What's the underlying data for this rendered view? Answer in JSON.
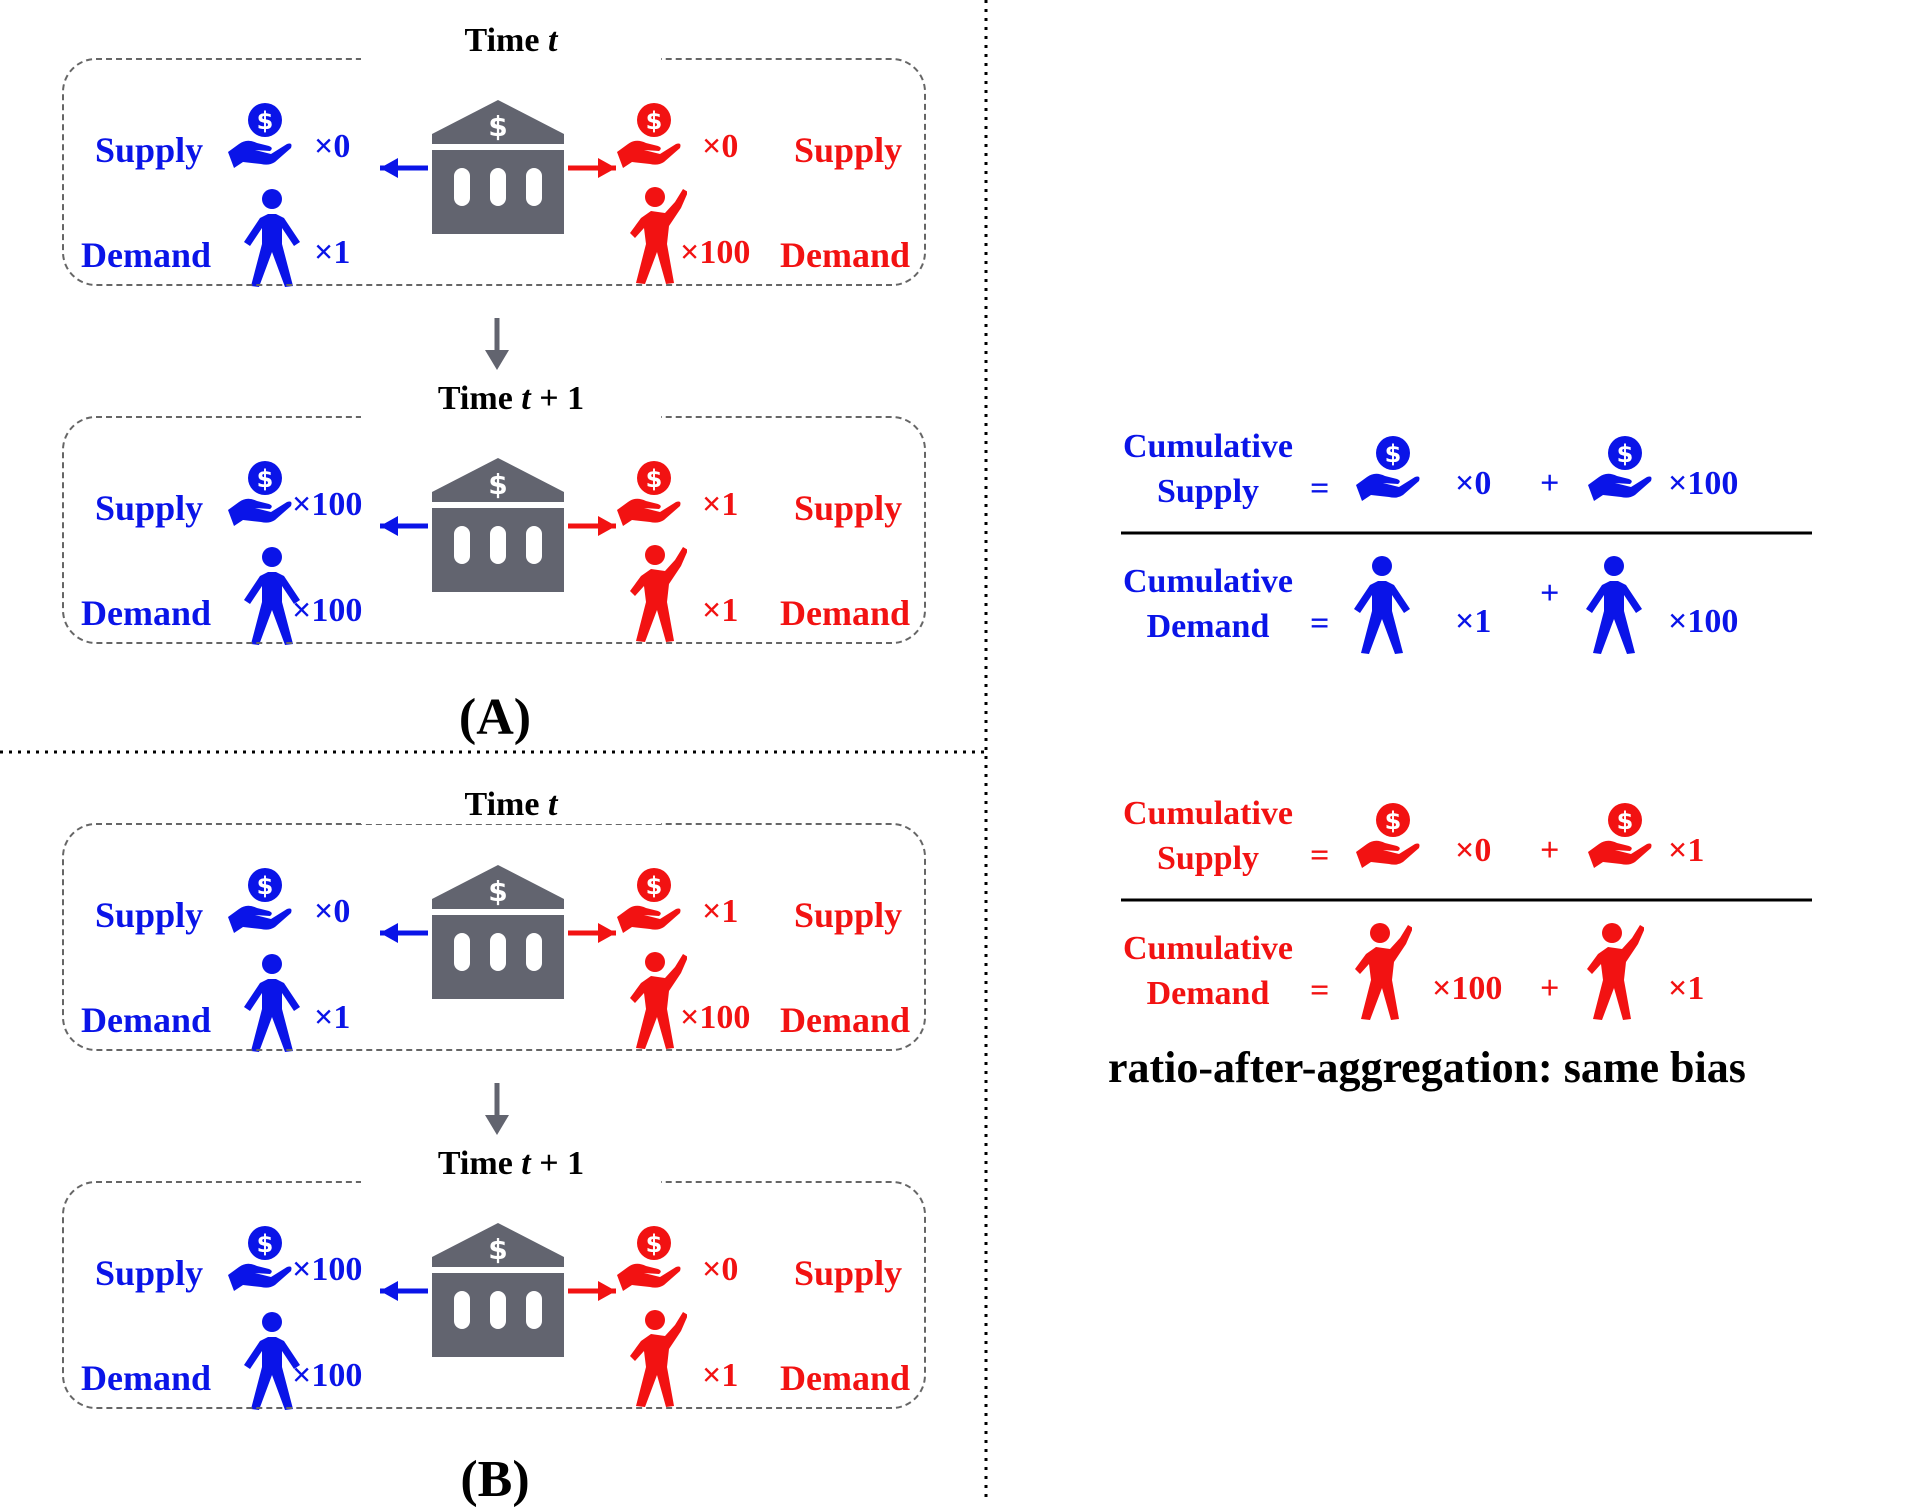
{
  "colors": {
    "blue": "#0a14e8",
    "red": "#f21212",
    "gray": "#62646f",
    "black": "#000000"
  },
  "icons": {
    "bank": "bank-icon",
    "supply": "hand-coin-icon",
    "demand": "person-icon"
  },
  "labels": {
    "supply": "Supply",
    "demand": "Demand",
    "cumulative": "Cumulative",
    "equals": "=",
    "plus": "+"
  },
  "panels": [
    {
      "letter": "(A)",
      "steps": [
        {
          "title_prefix": "Time",
          "title_var": "t",
          "title_suffix": "",
          "blue_supply": "×0",
          "blue_demand": "×1",
          "red_supply": "×0",
          "red_demand": "×100"
        },
        {
          "title_prefix": "Time",
          "title_var": "t",
          "title_suffix": "+ 1",
          "blue_supply": "×100",
          "blue_demand": "×100",
          "red_supply": "×1",
          "red_demand": "×1"
        }
      ]
    },
    {
      "letter": "(B)",
      "steps": [
        {
          "title_prefix": "Time",
          "title_var": "t",
          "title_suffix": "",
          "blue_supply": "×0",
          "blue_demand": "×1",
          "red_supply": "×1",
          "red_demand": "×100"
        },
        {
          "title_prefix": "Time",
          "title_var": "t",
          "title_suffix": "+ 1",
          "blue_supply": "×100",
          "blue_demand": "×100",
          "red_supply": "×0",
          "red_demand": "×1"
        }
      ]
    }
  ],
  "formulas": [
    {
      "color": "blue",
      "supply_terms": [
        "×0",
        "×100"
      ],
      "demand_terms": [
        "×1",
        "×100"
      ]
    },
    {
      "color": "red",
      "supply_terms": [
        "×0",
        "×1"
      ],
      "demand_terms": [
        "×100",
        "×1"
      ]
    }
  ],
  "conclusion": "ratio-after-aggregation: same bias"
}
